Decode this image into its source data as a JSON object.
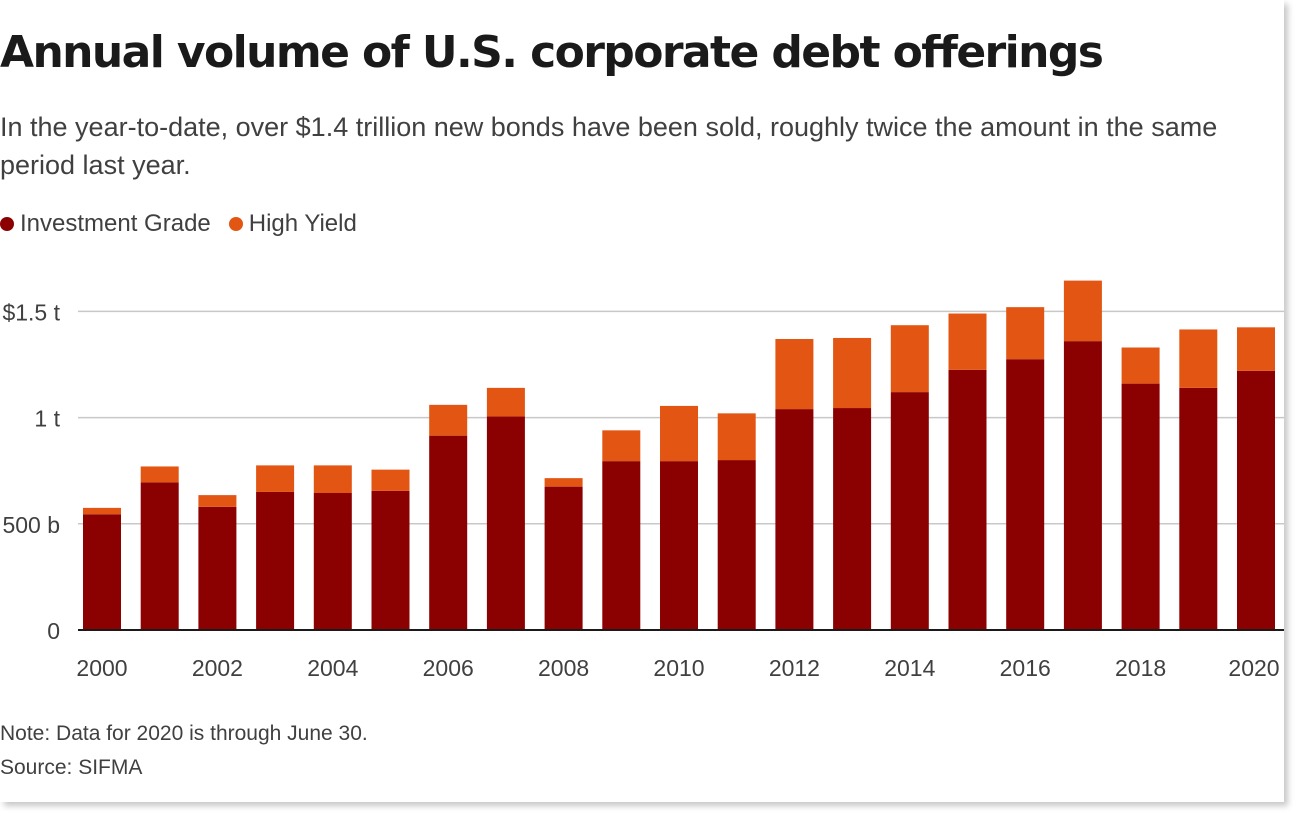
{
  "colors": {
    "investment_grade": "#8b0000",
    "high_yield": "#e35512",
    "gridline": "#c8c8c8",
    "axis": "#1a1a1a",
    "text": "#404040"
  },
  "chart_data": {
    "type": "bar",
    "stacked": true,
    "title": "Annual volume of U.S. corporate debt offerings",
    "subtitle": "In the year-to-date, over $1.4 trillion new bonds have been sold, roughly twice the amount in the same period last year.",
    "categories": [
      "2000",
      "2001",
      "2002",
      "2003",
      "2004",
      "2005",
      "2006",
      "2007",
      "2008",
      "2009",
      "2010",
      "2011",
      "2012",
      "2013",
      "2014",
      "2015",
      "2016",
      "2017",
      "2018",
      "2019",
      "2020"
    ],
    "series": [
      {
        "name": "Investment Grade",
        "values": [
          545,
          695,
          580,
          650,
          645,
          655,
          915,
          1005,
          675,
          795,
          795,
          800,
          1040,
          1045,
          1120,
          1225,
          1275,
          1360,
          1160,
          1140,
          1220
        ]
      },
      {
        "name": "High Yield",
        "values": [
          30,
          75,
          55,
          125,
          130,
          100,
          145,
          135,
          40,
          145,
          260,
          220,
          330,
          330,
          315,
          265,
          245,
          285,
          170,
          275,
          205
        ]
      }
    ],
    "ylim": [
      0,
      1650
    ],
    "yticks": [
      {
        "value": 0,
        "label": "0"
      },
      {
        "value": 500,
        "label": "500 b"
      },
      {
        "value": 1000,
        "label": "1 t"
      },
      {
        "value": 1500,
        "label": "$1.5 t"
      }
    ],
    "xtick_labels": [
      "2000",
      "2002",
      "2004",
      "2006",
      "2008",
      "2010",
      "2012",
      "2014",
      "2016",
      "2018",
      "2020"
    ],
    "legend_position": "top-left",
    "grid": true,
    "xlabel": "",
    "ylabel": ""
  },
  "footer": {
    "note": "Note: Data for 2020 is through June 30.",
    "source": "Source: SIFMA"
  }
}
